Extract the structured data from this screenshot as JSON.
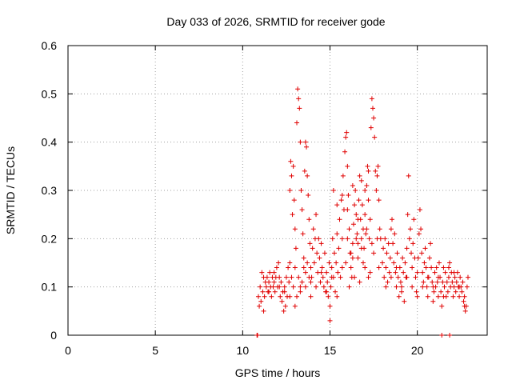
{
  "chart_data": {
    "type": "scatter",
    "title": "Day 033 of 2026, SRMTID for receiver gode",
    "xlabel": "GPS time / hours",
    "ylabel": "SRMTID / TECUs",
    "xlim": [
      0,
      24
    ],
    "ylim": [
      0,
      0.6
    ],
    "xticks": [
      0,
      5,
      10,
      15,
      20
    ],
    "yticks": [
      0,
      0.1,
      0.2,
      0.3,
      0.4,
      0.5,
      0.6
    ],
    "xtick_labels": [
      "0",
      "5",
      "10",
      "15",
      "20"
    ],
    "ytick_labels": [
      "0",
      "0.1",
      "0.2",
      "0.3",
      "0.4",
      "0.5",
      "0.6"
    ],
    "grid": true,
    "marker": "+",
    "marker_color": "#e00000",
    "series": [
      {
        "name": "SRMTID",
        "points": [
          [
            10.82,
            0.0
          ],
          [
            10.85,
            0.0
          ],
          [
            21.4,
            0.0
          ],
          [
            21.85,
            0.0
          ],
          [
            10.9,
            0.08
          ],
          [
            10.95,
            0.06
          ],
          [
            11.0,
            0.1
          ],
          [
            11.05,
            0.07
          ],
          [
            11.1,
            0.13
          ],
          [
            11.15,
            0.09
          ],
          [
            11.2,
            0.05
          ],
          [
            11.25,
            0.08
          ],
          [
            11.3,
            0.11
          ],
          [
            11.35,
            0.1
          ],
          [
            11.4,
            0.12
          ],
          [
            11.45,
            0.09
          ],
          [
            11.5,
            0.11
          ],
          [
            11.55,
            0.13
          ],
          [
            11.6,
            0.1
          ],
          [
            11.65,
            0.08
          ],
          [
            11.7,
            0.12
          ],
          [
            11.75,
            0.1
          ],
          [
            11.8,
            0.11
          ],
          [
            11.85,
            0.09
          ],
          [
            11.9,
            0.12
          ],
          [
            11.95,
            0.14
          ],
          [
            12.0,
            0.1
          ],
          [
            12.05,
            0.15
          ],
          [
            12.1,
            0.12
          ],
          [
            12.15,
            0.08
          ],
          [
            12.2,
            0.11
          ],
          [
            12.25,
            0.07
          ],
          [
            12.3,
            0.09
          ],
          [
            12.35,
            0.05
          ],
          [
            12.4,
            0.1
          ],
          [
            12.45,
            0.06
          ],
          [
            12.5,
            0.12
          ],
          [
            12.55,
            0.08
          ],
          [
            12.6,
            0.14
          ],
          [
            12.65,
            0.11
          ],
          [
            12.7,
            0.3
          ],
          [
            12.75,
            0.36
          ],
          [
            12.8,
            0.33
          ],
          [
            12.85,
            0.25
          ],
          [
            12.9,
            0.35
          ],
          [
            12.95,
            0.28
          ],
          [
            13.0,
            0.22
          ],
          [
            13.05,
            0.18
          ],
          [
            13.1,
            0.44
          ],
          [
            13.15,
            0.51
          ],
          [
            13.2,
            0.49
          ],
          [
            13.25,
            0.47
          ],
          [
            13.3,
            0.4
          ],
          [
            13.35,
            0.3
          ],
          [
            13.4,
            0.26
          ],
          [
            13.45,
            0.21
          ],
          [
            13.5,
            0.16
          ],
          [
            13.55,
            0.34
          ],
          [
            13.6,
            0.4
          ],
          [
            13.65,
            0.39
          ],
          [
            13.7,
            0.33
          ],
          [
            13.75,
            0.29
          ],
          [
            13.8,
            0.24
          ],
          [
            13.85,
            0.19
          ],
          [
            13.9,
            0.14
          ],
          [
            13.95,
            0.12
          ],
          [
            12.7,
            0.15
          ],
          [
            12.8,
            0.12
          ],
          [
            12.9,
            0.1
          ],
          [
            13.0,
            0.14
          ],
          [
            13.1,
            0.08
          ],
          [
            13.2,
            0.12
          ],
          [
            13.3,
            0.09
          ],
          [
            13.4,
            0.11
          ],
          [
            13.5,
            0.14
          ],
          [
            13.6,
            0.1
          ],
          [
            13.7,
            0.15
          ],
          [
            13.8,
            0.12
          ],
          [
            13.9,
            0.08
          ],
          [
            14.0,
            0.18
          ],
          [
            14.05,
            0.22
          ],
          [
            14.1,
            0.15
          ],
          [
            14.15,
            0.2
          ],
          [
            14.2,
            0.25
          ],
          [
            14.25,
            0.17
          ],
          [
            14.3,
            0.13
          ],
          [
            14.35,
            0.2
          ],
          [
            14.4,
            0.16
          ],
          [
            14.45,
            0.11
          ],
          [
            14.5,
            0.19
          ],
          [
            14.55,
            0.14
          ],
          [
            14.6,
            0.12
          ],
          [
            14.65,
            0.1
          ],
          [
            14.7,
            0.17
          ],
          [
            14.75,
            0.09
          ],
          [
            14.8,
            0.13
          ],
          [
            14.85,
            0.11
          ],
          [
            14.9,
            0.08
          ],
          [
            14.95,
            0.15
          ],
          [
            15.0,
            0.06
          ],
          [
            15.0,
            0.03
          ],
          [
            15.05,
            0.1
          ],
          [
            15.1,
            0.14
          ],
          [
            15.15,
            0.2
          ],
          [
            15.2,
            0.12
          ],
          [
            15.25,
            0.17
          ],
          [
            15.3,
            0.09
          ],
          [
            15.35,
            0.15
          ],
          [
            15.4,
            0.21
          ],
          [
            15.45,
            0.13
          ],
          [
            15.5,
            0.18
          ],
          [
            15.55,
            0.24
          ],
          [
            15.6,
            0.12
          ],
          [
            15.65,
            0.28
          ],
          [
            15.7,
            0.2
          ],
          [
            15.75,
            0.33
          ],
          [
            15.8,
            0.26
          ],
          [
            15.85,
            0.38
          ],
          [
            15.9,
            0.41
          ],
          [
            15.95,
            0.42
          ],
          [
            16.0,
            0.35
          ],
          [
            16.05,
            0.29
          ],
          [
            16.1,
            0.22
          ],
          [
            16.15,
            0.17
          ],
          [
            16.2,
            0.14
          ],
          [
            16.25,
            0.12
          ],
          [
            16.3,
            0.19
          ],
          [
            16.35,
            0.23
          ],
          [
            16.4,
            0.27
          ],
          [
            16.45,
            0.3
          ],
          [
            16.5,
            0.25
          ],
          [
            16.55,
            0.21
          ],
          [
            16.6,
            0.16
          ],
          [
            16.65,
            0.28
          ],
          [
            16.7,
            0.33
          ],
          [
            16.75,
            0.24
          ],
          [
            16.8,
            0.2
          ],
          [
            16.85,
            0.27
          ],
          [
            16.9,
            0.22
          ],
          [
            16.95,
            0.18
          ],
          [
            17.0,
            0.25
          ],
          [
            17.05,
            0.21
          ],
          [
            17.1,
            0.31
          ],
          [
            17.15,
            0.35
          ],
          [
            17.2,
            0.28
          ],
          [
            17.25,
            0.2
          ],
          [
            17.3,
            0.24
          ],
          [
            17.35,
            0.43
          ],
          [
            17.4,
            0.49
          ],
          [
            17.45,
            0.47
          ],
          [
            17.5,
            0.45
          ],
          [
            17.55,
            0.41
          ],
          [
            17.6,
            0.34
          ],
          [
            17.65,
            0.3
          ],
          [
            17.7,
            0.33
          ],
          [
            17.75,
            0.35
          ],
          [
            17.8,
            0.28
          ],
          [
            17.85,
            0.22
          ],
          [
            17.9,
            0.2
          ],
          [
            15.2,
            0.3
          ],
          [
            15.4,
            0.27
          ],
          [
            15.7,
            0.29
          ],
          [
            16.0,
            0.26
          ],
          [
            16.3,
            0.31
          ],
          [
            16.6,
            0.24
          ],
          [
            16.8,
            0.32
          ],
          [
            17.0,
            0.3
          ],
          [
            17.2,
            0.34
          ],
          [
            16.1,
            0.1
          ],
          [
            16.4,
            0.12
          ],
          [
            16.7,
            0.11
          ],
          [
            17.0,
            0.14
          ],
          [
            17.3,
            0.13
          ],
          [
            15.9,
            0.15
          ],
          [
            16.2,
            0.17
          ],
          [
            16.5,
            0.2
          ],
          [
            16.8,
            0.18
          ],
          [
            17.1,
            0.22
          ],
          [
            17.4,
            0.19
          ],
          [
            17.7,
            0.2
          ],
          [
            18.0,
            0.15
          ],
          [
            18.05,
            0.18
          ],
          [
            18.1,
            0.12
          ],
          [
            18.15,
            0.2
          ],
          [
            18.2,
            0.14
          ],
          [
            18.25,
            0.17
          ],
          [
            18.3,
            0.11
          ],
          [
            18.35,
            0.19
          ],
          [
            18.4,
            0.13
          ],
          [
            18.45,
            0.16
          ],
          [
            18.5,
            0.22
          ],
          [
            18.55,
            0.24
          ],
          [
            18.6,
            0.19
          ],
          [
            18.65,
            0.15
          ],
          [
            18.7,
            0.21
          ],
          [
            18.75,
            0.13
          ],
          [
            18.8,
            0.1
          ],
          [
            18.85,
            0.17
          ],
          [
            18.9,
            0.12
          ],
          [
            18.95,
            0.08
          ],
          [
            19.0,
            0.14
          ],
          [
            19.05,
            0.11
          ],
          [
            19.1,
            0.09
          ],
          [
            19.15,
            0.16
          ],
          [
            19.2,
            0.13
          ],
          [
            19.25,
            0.07
          ],
          [
            19.3,
            0.15
          ],
          [
            19.35,
            0.12
          ],
          [
            19.4,
            0.18
          ],
          [
            19.45,
            0.25
          ],
          [
            19.5,
            0.33
          ],
          [
            19.55,
            0.2
          ],
          [
            19.6,
            0.22
          ],
          [
            19.65,
            0.17
          ],
          [
            19.7,
            0.14
          ],
          [
            19.75,
            0.19
          ],
          [
            19.8,
            0.24
          ],
          [
            19.85,
            0.16
          ],
          [
            19.9,
            0.12
          ],
          [
            19.95,
            0.09
          ],
          [
            20.0,
            0.13
          ],
          [
            20.05,
            0.16
          ],
          [
            20.1,
            0.21
          ],
          [
            20.15,
            0.26
          ],
          [
            20.2,
            0.22
          ],
          [
            20.25,
            0.17
          ],
          [
            20.3,
            0.13
          ],
          [
            20.35,
            0.11
          ],
          [
            20.4,
            0.15
          ],
          [
            20.45,
            0.18
          ],
          [
            20.5,
            0.14
          ],
          [
            20.55,
            0.1
          ],
          [
            20.6,
            0.08
          ],
          [
            20.65,
            0.12
          ],
          [
            20.7,
            0.16
          ],
          [
            20.75,
            0.19
          ],
          [
            20.8,
            0.14
          ],
          [
            20.85,
            0.11
          ],
          [
            20.9,
            0.07
          ],
          [
            20.95,
            0.09
          ],
          [
            21.0,
            0.13
          ],
          [
            21.05,
            0.1
          ],
          [
            21.1,
            0.14
          ],
          [
            21.15,
            0.11
          ],
          [
            21.2,
            0.08
          ],
          [
            21.25,
            0.15
          ],
          [
            21.3,
            0.12
          ],
          [
            21.35,
            0.09
          ],
          [
            21.4,
            0.06
          ],
          [
            21.45,
            0.11
          ],
          [
            21.5,
            0.14
          ],
          [
            21.55,
            0.1
          ],
          [
            21.6,
            0.13
          ],
          [
            21.65,
            0.08
          ],
          [
            21.7,
            0.11
          ],
          [
            21.75,
            0.09
          ],
          [
            21.8,
            0.12
          ],
          [
            21.85,
            0.15
          ],
          [
            21.9,
            0.1
          ],
          [
            21.95,
            0.13
          ],
          [
            22.0,
            0.11
          ],
          [
            22.05,
            0.08
          ],
          [
            22.1,
            0.1
          ],
          [
            22.15,
            0.12
          ],
          [
            22.2,
            0.09
          ],
          [
            22.25,
            0.11
          ],
          [
            22.3,
            0.13
          ],
          [
            22.35,
            0.1
          ],
          [
            22.4,
            0.08
          ],
          [
            22.45,
            0.12
          ],
          [
            22.5,
            0.1
          ],
          [
            22.55,
            0.09
          ],
          [
            22.6,
            0.11
          ],
          [
            22.65,
            0.07
          ],
          [
            22.7,
            0.06
          ],
          [
            22.75,
            0.05
          ],
          [
            22.8,
            0.06
          ],
          [
            22.85,
            0.1
          ],
          [
            22.9,
            0.12
          ],
          [
            18.2,
            0.1
          ],
          [
            18.5,
            0.12
          ],
          [
            18.8,
            0.14
          ],
          [
            19.1,
            0.1
          ],
          [
            19.4,
            0.12
          ],
          [
            19.7,
            0.1
          ],
          [
            20.0,
            0.08
          ],
          [
            20.3,
            0.1
          ],
          [
            20.6,
            0.12
          ],
          [
            20.9,
            0.1
          ],
          [
            21.2,
            0.12
          ],
          [
            21.5,
            0.08
          ],
          [
            21.8,
            0.14
          ],
          [
            22.1,
            0.13
          ],
          [
            22.4,
            0.1
          ],
          [
            22.7,
            0.08
          ],
          [
            11.2,
            0.12
          ],
          [
            11.5,
            0.09
          ],
          [
            11.8,
            0.13
          ],
          [
            12.1,
            0.1
          ],
          [
            12.4,
            0.09
          ],
          [
            12.7,
            0.08
          ],
          [
            13.0,
            0.06
          ],
          [
            13.3,
            0.1
          ],
          [
            13.6,
            0.13
          ],
          [
            13.9,
            0.11
          ],
          [
            14.2,
            0.1
          ],
          [
            14.5,
            0.13
          ],
          [
            14.8,
            0.09
          ],
          [
            15.1,
            0.12
          ],
          [
            15.4,
            0.08
          ],
          [
            15.7,
            0.14
          ],
          [
            16.0,
            0.2
          ],
          [
            16.3,
            0.16
          ],
          [
            16.6,
            0.19
          ],
          [
            16.9,
            0.15
          ],
          [
            17.2,
            0.12
          ],
          [
            17.5,
            0.17
          ],
          [
            17.8,
            0.14
          ]
        ]
      }
    ]
  }
}
